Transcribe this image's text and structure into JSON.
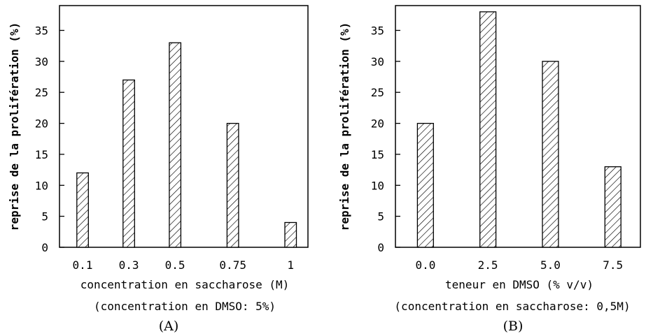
{
  "chart_data": [
    {
      "type": "bar",
      "panel": "(A)",
      "categories": [
        "0.1",
        "0.3",
        "0.5",
        "0.75",
        "1"
      ],
      "x_positions": [
        0.1,
        0.3,
        0.5,
        0.75,
        1.0
      ],
      "values": [
        12,
        27,
        33,
        20,
        4
      ],
      "ylabel": "reprise de la prolifération (%)",
      "xlabel": "concentration en saccharose (M)",
      "caption": "(concentration en DMSO: 5%)",
      "ylim": [
        0,
        39
      ],
      "yticks": [
        0,
        5,
        10,
        15,
        20,
        25,
        30,
        35
      ],
      "xlim": [
        0.0,
        1.075
      ],
      "bar_width": 0.05,
      "fill": "hatched",
      "grid": false
    },
    {
      "type": "bar",
      "panel": "(B)",
      "categories": [
        "0.0",
        "2.5",
        "5.0",
        "7.5"
      ],
      "x_positions": [
        0.0,
        2.5,
        5.0,
        7.5
      ],
      "values": [
        20,
        38,
        30,
        13
      ],
      "ylabel": "reprise de la prolifération (%)",
      "xlabel": "teneur en DMSO (% v/v)",
      "caption": "(concentration en saccharose: 0,5M)",
      "ylim": [
        0,
        39
      ],
      "yticks": [
        0,
        5,
        10,
        15,
        20,
        25,
        30,
        35
      ],
      "xlim": [
        -1.2,
        8.6
      ],
      "bar_width": 0.64,
      "fill": "hatched",
      "grid": false
    }
  ],
  "colors": {
    "ink": "#000000",
    "background": "#ffffff"
  }
}
